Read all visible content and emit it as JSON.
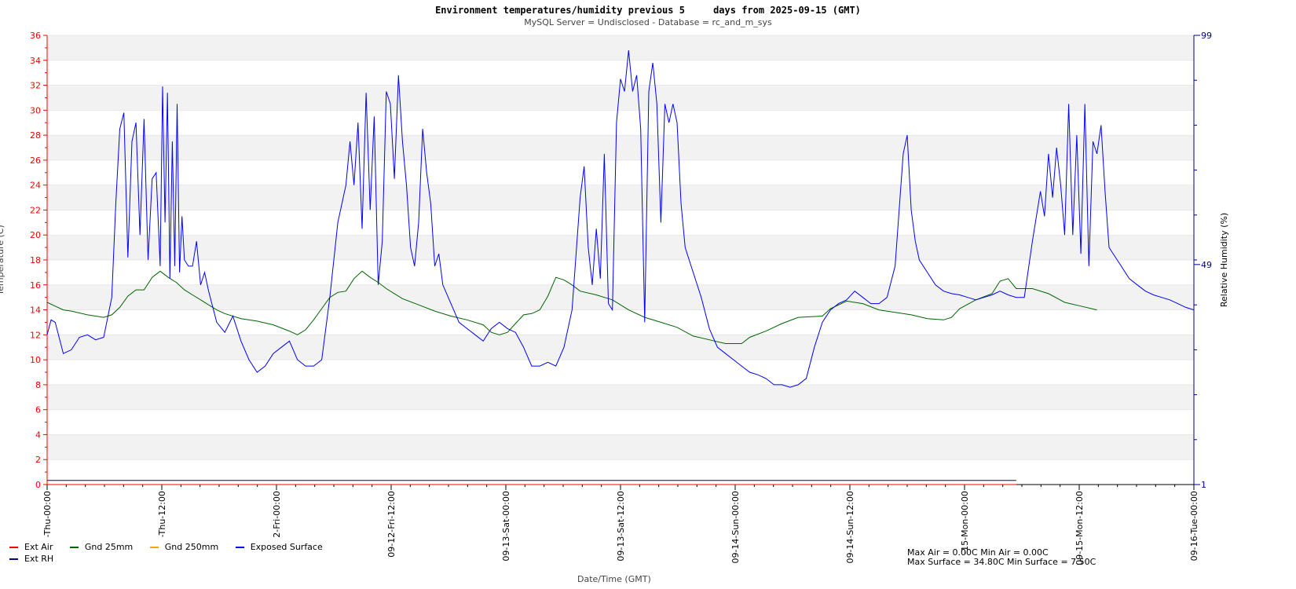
{
  "chart_data": {
    "type": "line",
    "title": "Environment temperatures/humidity previous 5     days from 2025-09-15 (GMT)",
    "subtitle": "MySQL Server = Undisclosed - Database = rc_and_m_sys",
    "xlabel": "Date/Time (GMT)",
    "ylabel_left": "Temperature (C)",
    "ylabel_right": "Relative Humidity (%)",
    "ylim_left": [
      0,
      36
    ],
    "ylim_right": [
      1,
      99
    ],
    "yticks_left": [
      "0",
      "2",
      "4",
      "6",
      "8",
      "10",
      "12",
      "14",
      "16",
      "18",
      "20",
      "22",
      "24",
      "26",
      "28",
      "30",
      "32",
      "34",
      "36"
    ],
    "yticks_right": [
      "1",
      "49",
      "99"
    ],
    "x_hours": [
      0,
      120
    ],
    "xtick_labels": [
      "-Thu-00:00",
      "-Thu-12:00",
      "2-Fri-00:00",
      "09-12-Fri-12:00",
      "09-13-Sat-00:00",
      "09-13-Sat-12:00",
      "09-14-Sun-00:00",
      "09-14-Sun-12:00",
      "-15-Mon-00:00",
      "09-15-Mon-12:00",
      "09-16-Tue-00:00"
    ],
    "grid": "horizontal bands",
    "legend_position": "bottom-left",
    "legend_rows": [
      [
        "Ext Air",
        "Gnd 25mm",
        "Gnd 250mm",
        "Exposed Surface"
      ],
      [
        "Ext RH"
      ]
    ],
    "series": [
      {
        "name": "Ext Air",
        "color": "#ff0000",
        "axis": "left",
        "points": [
          [
            0,
            0
          ],
          [
            120,
            0
          ]
        ]
      },
      {
        "name": "Gnd 25mm",
        "color": "#006400",
        "axis": "left",
        "points": [
          [
            0,
            14.6
          ],
          [
            1,
            14.3
          ],
          [
            2,
            14
          ],
          [
            3,
            13.9
          ],
          [
            5,
            13.6
          ],
          [
            7,
            13.4
          ],
          [
            8,
            13.6
          ],
          [
            9,
            14.2
          ],
          [
            10,
            15.1
          ],
          [
            11,
            15.6
          ],
          [
            12,
            15.6
          ],
          [
            13,
            16.6
          ],
          [
            14,
            17.1
          ],
          [
            15,
            16.6
          ],
          [
            16,
            16.2
          ],
          [
            17,
            15.6
          ],
          [
            18,
            15.2
          ],
          [
            19,
            14.8
          ],
          [
            20,
            14.4
          ],
          [
            21,
            14.0
          ],
          [
            22,
            13.7
          ],
          [
            24,
            13.3
          ],
          [
            26,
            13.1
          ],
          [
            28,
            12.8
          ],
          [
            30,
            12.3
          ],
          [
            31,
            12.0
          ],
          [
            32,
            12.4
          ],
          [
            33,
            13.2
          ],
          [
            34,
            14.1
          ],
          [
            35,
            15.0
          ],
          [
            36,
            15.4
          ],
          [
            37,
            15.5
          ],
          [
            38,
            16.5
          ],
          [
            39,
            17.1
          ],
          [
            40,
            16.6
          ],
          [
            41,
            16.2
          ],
          [
            42,
            15.7
          ],
          [
            43,
            15.3
          ],
          [
            44,
            14.9
          ],
          [
            46,
            14.4
          ],
          [
            48,
            13.9
          ],
          [
            50,
            13.5
          ],
          [
            52,
            13.2
          ],
          [
            54,
            12.8
          ],
          [
            55,
            12.2
          ],
          [
            56,
            12.0
          ],
          [
            57,
            12.2
          ],
          [
            58,
            12.9
          ],
          [
            59,
            13.6
          ],
          [
            60,
            13.7
          ],
          [
            61,
            14.0
          ],
          [
            62,
            15.1
          ],
          [
            63,
            16.6
          ],
          [
            64,
            16.4
          ],
          [
            65,
            16.0
          ],
          [
            66,
            15.5
          ],
          [
            68,
            15.2
          ],
          [
            70,
            14.8
          ],
          [
            72,
            14.0
          ],
          [
            74,
            13.4
          ],
          [
            76,
            13.0
          ],
          [
            78,
            12.6
          ],
          [
            80,
            11.9
          ],
          [
            82,
            11.6
          ],
          [
            84,
            11.3
          ],
          [
            86,
            11.3
          ],
          [
            87,
            11.8
          ],
          [
            89,
            12.3
          ],
          [
            91,
            12.9
          ],
          [
            93,
            13.4
          ],
          [
            96,
            13.5
          ],
          [
            97,
            14.1
          ],
          [
            99,
            14.7
          ],
          [
            101,
            14.5
          ],
          [
            103,
            14.0
          ],
          [
            105,
            13.8
          ],
          [
            107,
            13.6
          ],
          [
            109,
            13.3
          ],
          [
            111,
            13.2
          ],
          [
            112,
            13.4
          ],
          [
            113,
            14.1
          ],
          [
            115,
            14.8
          ],
          [
            117,
            15.3
          ],
          [
            118,
            16.3
          ],
          [
            119,
            16.5
          ],
          [
            120,
            15.7
          ],
          [
            122,
            15.7
          ],
          [
            124,
            15.3
          ],
          [
            126,
            14.6
          ],
          [
            128,
            14.3
          ],
          [
            130,
            14.0
          ]
        ]
      },
      {
        "name": "Gnd 250mm",
        "color": "#ffa500",
        "axis": "left",
        "points": []
      },
      {
        "name": "Exposed Surface",
        "color": "#0000ff",
        "axis": "left",
        "points": [
          [
            0,
            12.0
          ],
          [
            0.5,
            13.2
          ],
          [
            1,
            13.0
          ],
          [
            2,
            10.5
          ],
          [
            3,
            10.8
          ],
          [
            4,
            11.8
          ],
          [
            5,
            12.0
          ],
          [
            6,
            11.6
          ],
          [
            7,
            11.8
          ],
          [
            8,
            15.0
          ],
          [
            8.5,
            22.5
          ],
          [
            9,
            28.5
          ],
          [
            9.5,
            29.8
          ],
          [
            10,
            18.2
          ],
          [
            10.5,
            27.5
          ],
          [
            11,
            29.0
          ],
          [
            11.5,
            20.0
          ],
          [
            12,
            29.3
          ],
          [
            12.5,
            18.0
          ],
          [
            13,
            24.5
          ],
          [
            13.5,
            25.0
          ],
          [
            14,
            17.5
          ],
          [
            14.3,
            31.9
          ],
          [
            14.6,
            21.0
          ],
          [
            14.9,
            31.4
          ],
          [
            15.2,
            16.5
          ],
          [
            15.5,
            27.5
          ],
          [
            15.8,
            17.5
          ],
          [
            16.1,
            30.5
          ],
          [
            16.4,
            17.0
          ],
          [
            16.7,
            21.5
          ],
          [
            17,
            18.0
          ],
          [
            17.5,
            17.5
          ],
          [
            18,
            17.5
          ],
          [
            18.5,
            19.5
          ],
          [
            19,
            16.0
          ],
          [
            19.5,
            17.0
          ],
          [
            20,
            15.5
          ],
          [
            21,
            13.0
          ],
          [
            22,
            12.2
          ],
          [
            23,
            13.5
          ],
          [
            24,
            11.5
          ],
          [
            25,
            10.0
          ],
          [
            26,
            9.0
          ],
          [
            27,
            9.5
          ],
          [
            28,
            10.5
          ],
          [
            29,
            11.0
          ],
          [
            30,
            11.5
          ],
          [
            31,
            10.0
          ],
          [
            32,
            9.5
          ],
          [
            33,
            9.5
          ],
          [
            34,
            10.0
          ],
          [
            35,
            15.0
          ],
          [
            36,
            21.0
          ],
          [
            37,
            24.0
          ],
          [
            37.5,
            27.5
          ],
          [
            38,
            24.0
          ],
          [
            38.5,
            29.0
          ],
          [
            39,
            20.5
          ],
          [
            39.5,
            31.4
          ],
          [
            40,
            22.0
          ],
          [
            40.5,
            29.5
          ],
          [
            41,
            16.0
          ],
          [
            41.5,
            19.5
          ],
          [
            42,
            31.5
          ],
          [
            42.5,
            30.5
          ],
          [
            43,
            24.5
          ],
          [
            43.5,
            32.8
          ],
          [
            44,
            27.5
          ],
          [
            44.5,
            24.0
          ],
          [
            45,
            19.0
          ],
          [
            45.5,
            17.5
          ],
          [
            46,
            21.0
          ],
          [
            46.5,
            28.5
          ],
          [
            47,
            25.0
          ],
          [
            47.5,
            22.5
          ],
          [
            48,
            17.5
          ],
          [
            48.5,
            18.5
          ],
          [
            49,
            16.0
          ],
          [
            50,
            14.5
          ],
          [
            51,
            13.0
          ],
          [
            52,
            12.5
          ],
          [
            53,
            12.0
          ],
          [
            54,
            11.5
          ],
          [
            55,
            12.5
          ],
          [
            56,
            13.0
          ],
          [
            57,
            12.5
          ],
          [
            58,
            12.2
          ],
          [
            59,
            11.0
          ],
          [
            60,
            9.5
          ],
          [
            61,
            9.5
          ],
          [
            62,
            9.8
          ],
          [
            63,
            9.5
          ],
          [
            64,
            11.0
          ],
          [
            65,
            14.0
          ],
          [
            66,
            23.0
          ],
          [
            66.5,
            25.5
          ],
          [
            67,
            19.0
          ],
          [
            67.5,
            16.0
          ],
          [
            68,
            20.5
          ],
          [
            68.5,
            16.5
          ],
          [
            69,
            26.5
          ],
          [
            69.5,
            14.5
          ],
          [
            70,
            14.0
          ],
          [
            70.5,
            29.0
          ],
          [
            71,
            32.5
          ],
          [
            71.5,
            31.5
          ],
          [
            72,
            34.8
          ],
          [
            72.5,
            31.5
          ],
          [
            73,
            32.8
          ],
          [
            73.5,
            28.5
          ],
          [
            74,
            13.0
          ],
          [
            74.5,
            31.5
          ],
          [
            75,
            33.8
          ],
          [
            75.5,
            30.5
          ],
          [
            76,
            21.0
          ],
          [
            76.5,
            30.5
          ],
          [
            77,
            29.0
          ],
          [
            77.5,
            30.5
          ],
          [
            78,
            29.0
          ],
          [
            78.5,
            22.5
          ],
          [
            79,
            19.0
          ],
          [
            80,
            17.0
          ],
          [
            81,
            15.0
          ],
          [
            82,
            12.5
          ],
          [
            83,
            11.0
          ],
          [
            84,
            10.5
          ],
          [
            85,
            10.0
          ],
          [
            86,
            9.5
          ],
          [
            87,
            9.0
          ],
          [
            88,
            8.8
          ],
          [
            89,
            8.5
          ],
          [
            90,
            8.0
          ],
          [
            91,
            8.0
          ],
          [
            92,
            7.8
          ],
          [
            93,
            8.0
          ],
          [
            94,
            8.5
          ],
          [
            95,
            11.0
          ],
          [
            96,
            13.0
          ],
          [
            97,
            14.0
          ],
          [
            98,
            14.5
          ],
          [
            99,
            14.8
          ],
          [
            100,
            15.5
          ],
          [
            101,
            15.0
          ],
          [
            102,
            14.5
          ],
          [
            103,
            14.5
          ],
          [
            104,
            15.0
          ],
          [
            105,
            17.5
          ],
          [
            106,
            26.5
          ],
          [
            106.5,
            28.0
          ],
          [
            107,
            22.0
          ],
          [
            107.5,
            19.5
          ],
          [
            108,
            18.0
          ],
          [
            109,
            17.0
          ],
          [
            110,
            16.0
          ],
          [
            111,
            15.5
          ],
          [
            112,
            15.3
          ],
          [
            113,
            15.2
          ],
          [
            114,
            15.0
          ],
          [
            115,
            14.8
          ],
          [
            116,
            15.0
          ],
          [
            117,
            15.2
          ],
          [
            118,
            15.5
          ],
          [
            119,
            15.2
          ],
          [
            120,
            15.0
          ],
          [
            121,
            15.0
          ],
          [
            122,
            19.5
          ],
          [
            123,
            23.5
          ],
          [
            123.5,
            21.5
          ],
          [
            124,
            26.5
          ],
          [
            124.5,
            23.0
          ],
          [
            125,
            27.0
          ],
          [
            125.5,
            24.0
          ],
          [
            126,
            20.0
          ],
          [
            126.5,
            30.5
          ],
          [
            127,
            20.0
          ],
          [
            127.5,
            28.0
          ],
          [
            128,
            18.5
          ],
          [
            128.5,
            30.5
          ],
          [
            129,
            17.5
          ],
          [
            129.5,
            27.5
          ],
          [
            130,
            26.5
          ],
          [
            130.5,
            28.8
          ],
          [
            131,
            23.5
          ],
          [
            131.5,
            19.0
          ],
          [
            132,
            18.5
          ],
          [
            133,
            17.5
          ],
          [
            134,
            16.5
          ],
          [
            135,
            16.0
          ],
          [
            136,
            15.5
          ],
          [
            137,
            15.2
          ],
          [
            138,
            15.0
          ],
          [
            139,
            14.8
          ],
          [
            140,
            14.5
          ],
          [
            141,
            14.2
          ],
          [
            142,
            14.0
          ]
        ]
      },
      {
        "name": "Ext RH",
        "color": "#00008b",
        "axis": "right",
        "points": [
          [
            0,
            1.9
          ],
          [
            120,
            1.9
          ]
        ]
      }
    ],
    "stats_lines": [
      "Max Air = 0.00C Min Air = 0.00C",
      "Max Surface = 34.80C Min Surface = 7.50C"
    ]
  }
}
